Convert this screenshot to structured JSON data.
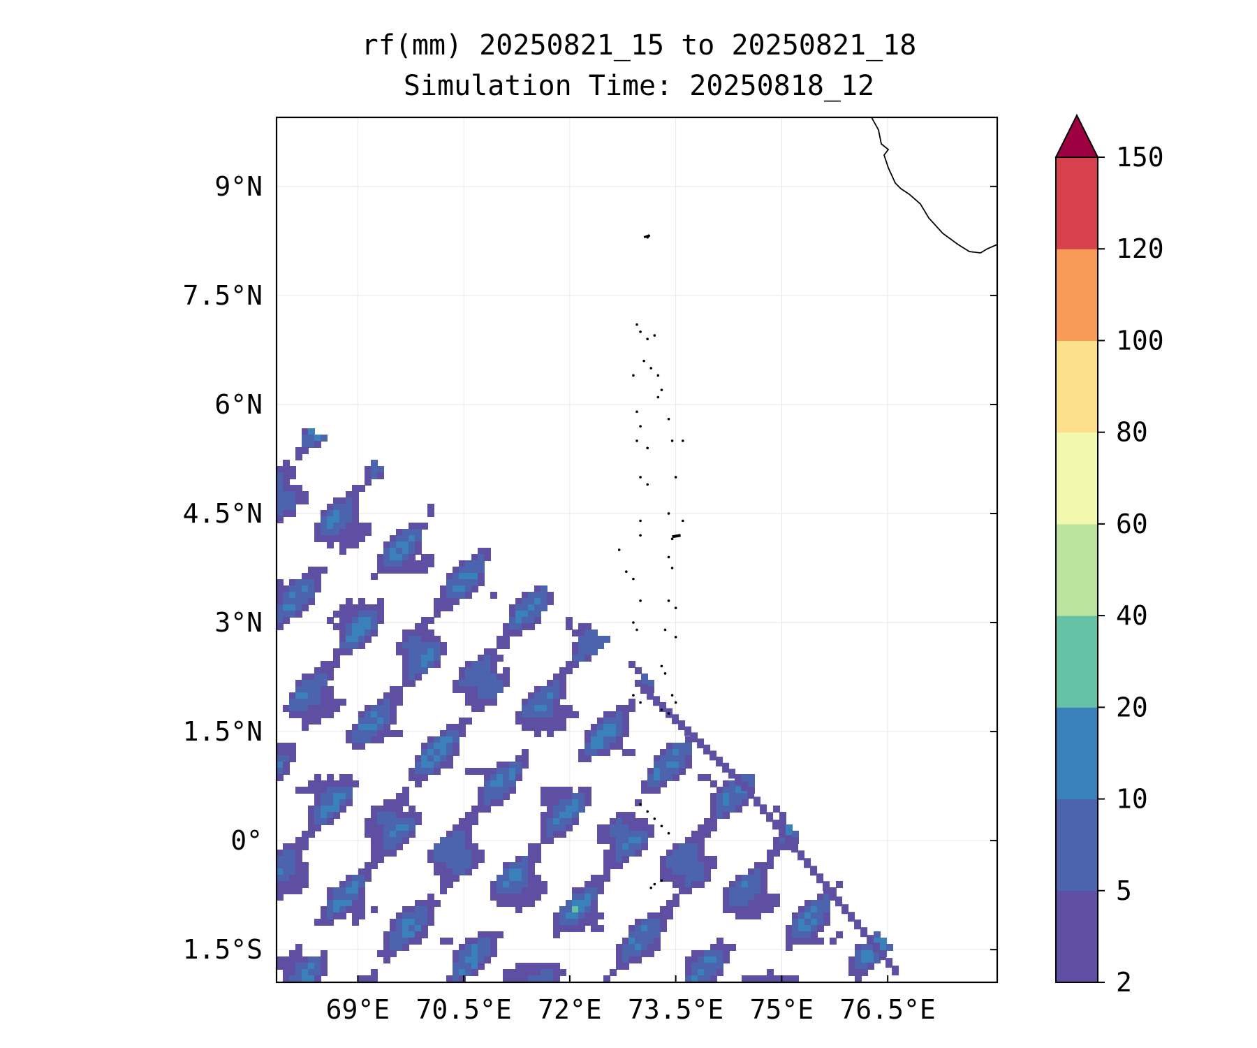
{
  "title": "rf(mm) 20250821_15 to 20250821_18",
  "subtitle": "Simulation Time: 20250818_12",
  "map": {
    "lon_range": [
      67.85,
      78.05
    ],
    "lat_range": [
      -1.95,
      9.95
    ],
    "lon_ticks": [
      {
        "value": 69.0,
        "label": "69°E"
      },
      {
        "value": 70.5,
        "label": "70.5°E"
      },
      {
        "value": 72.0,
        "label": "72°E"
      },
      {
        "value": 73.5,
        "label": "73.5°E"
      },
      {
        "value": 75.0,
        "label": "75°E"
      },
      {
        "value": 76.5,
        "label": "76.5°E"
      }
    ],
    "lat_ticks": [
      {
        "value": 9.0,
        "label": "9°N"
      },
      {
        "value": 7.5,
        "label": "7.5°N"
      },
      {
        "value": 6.0,
        "label": "6°N"
      },
      {
        "value": 4.5,
        "label": "4.5°N"
      },
      {
        "value": 3.0,
        "label": "3°N"
      },
      {
        "value": 1.5,
        "label": "1.5°N"
      },
      {
        "value": 0.0,
        "label": "0°"
      },
      {
        "value": -1.5,
        "label": "1.5°S"
      }
    ],
    "grid": true,
    "rain_front": [
      [
        67.85,
        5.7
      ],
      [
        69.0,
        5.2
      ],
      [
        71.0,
        3.8
      ],
      [
        72.8,
        2.4
      ],
      [
        74.4,
        0.9
      ],
      [
        76.0,
        -1.0
      ],
      [
        76.8,
        -1.95
      ]
    ]
  },
  "colorbar": {
    "levels": [
      {
        "label": "2",
        "color": "#5e4fa2"
      },
      {
        "label": "5",
        "color": "#4b64ad"
      },
      {
        "label": "10",
        "color": "#3a80bb"
      },
      {
        "label": "20",
        "color": "#66c2a5"
      },
      {
        "label": "40",
        "color": "#bde3a0"
      },
      {
        "label": "60",
        "color": "#f2f9ae"
      },
      {
        "label": "80",
        "color": "#fde08b"
      },
      {
        "label": "100",
        "color": "#f99b58"
      },
      {
        "label": "120",
        "color": "#d7414e"
      },
      {
        "label": "150",
        "color": "#9e0142"
      }
    ],
    "extend": "max"
  }
}
